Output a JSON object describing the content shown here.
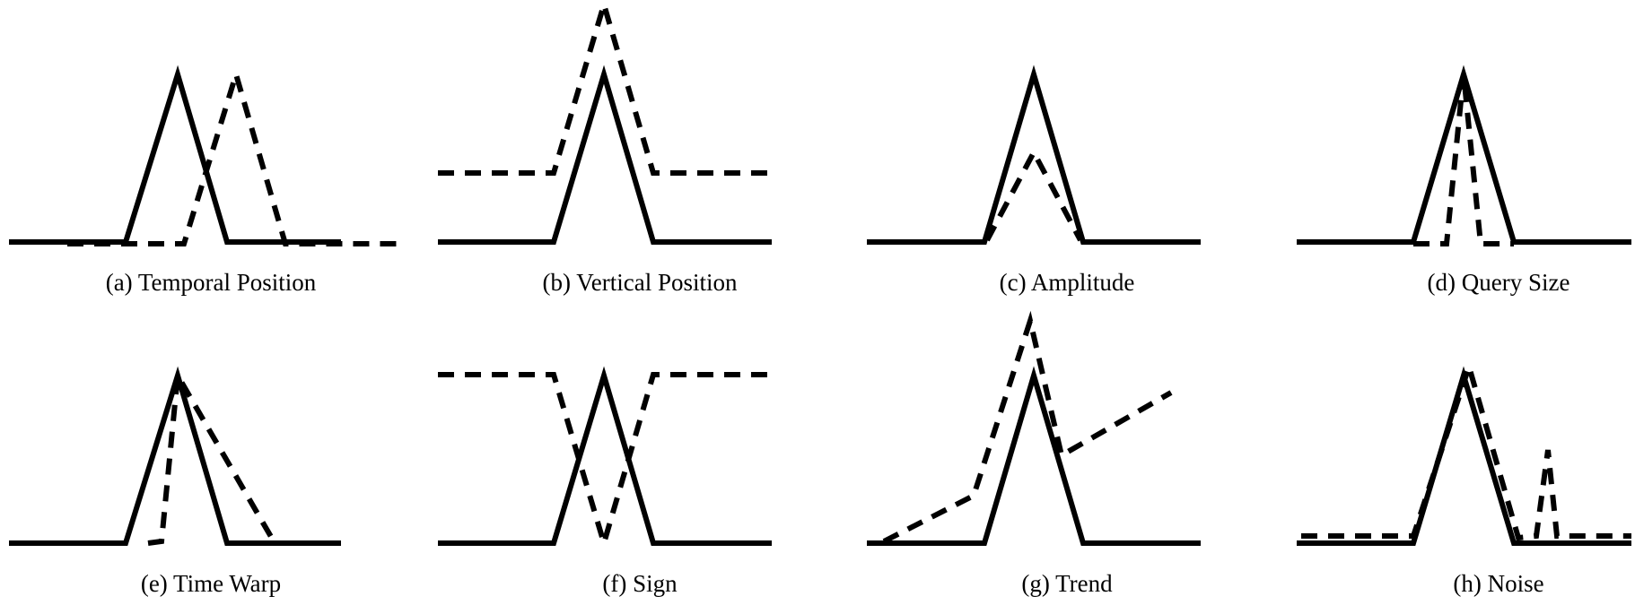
{
  "figure": {
    "panels": [
      {
        "id": "a",
        "caption": "(a) Temporal Position"
      },
      {
        "id": "b",
        "caption": "(b) Vertical Position"
      },
      {
        "id": "c",
        "caption": "(c) Amplitude"
      },
      {
        "id": "d",
        "caption": "(d) Query Size"
      },
      {
        "id": "e",
        "caption": "(e) Time Warp"
      },
      {
        "id": "f",
        "caption": "(f) Sign"
      },
      {
        "id": "g",
        "caption": "(g) Trend"
      },
      {
        "id": "h",
        "caption": "(h) Noise"
      }
    ],
    "line_color": "#000000",
    "background": "#ffffff"
  }
}
